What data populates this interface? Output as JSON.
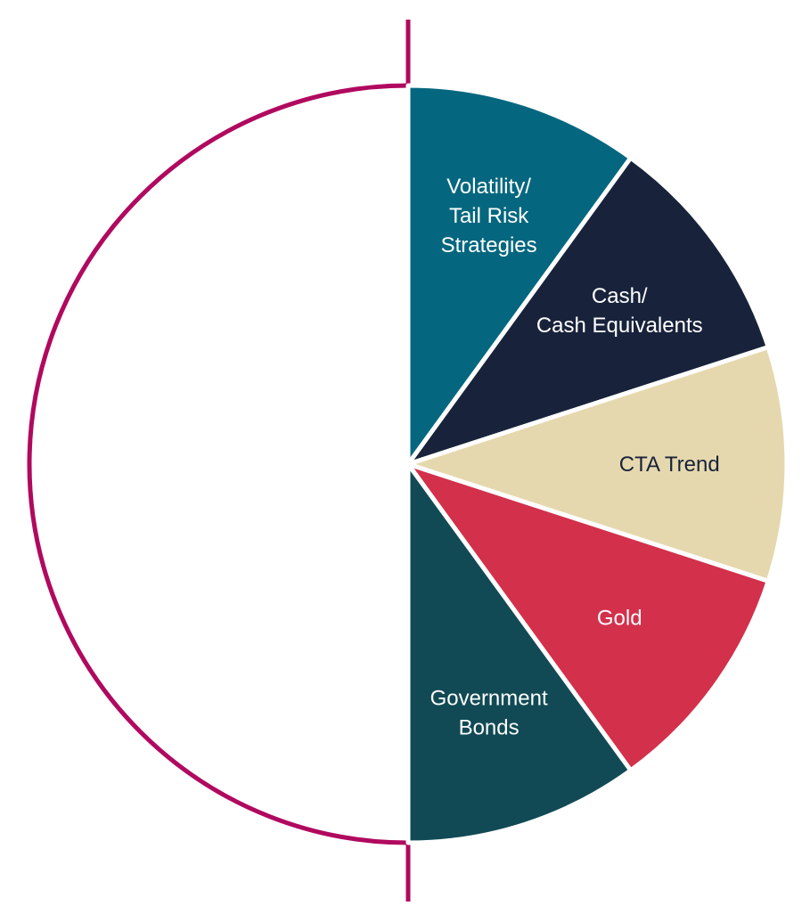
{
  "chart_data": {
    "type": "pie",
    "title": "",
    "categories": [
      "Volatility/ Tail Risk Strategies",
      "Cash/ Cash Equivalents",
      "CTA Trend",
      "Gold",
      "Government Bonds"
    ],
    "values": [
      20,
      20,
      20,
      20,
      20
    ],
    "slices": [
      {
        "lines": [
          "Volatility/",
          "Tail Risk",
          "Strategies"
        ],
        "value": 20,
        "color": "#05677f",
        "text_color": "#ffffff"
      },
      {
        "lines": [
          "Cash/",
          "Cash Equivalents"
        ],
        "value": 20,
        "color": "#18233b",
        "text_color": "#ffffff"
      },
      {
        "lines": [
          "CTA Trend"
        ],
        "value": 20,
        "color": "#e6d8ae",
        "text_color": "#18233b"
      },
      {
        "lines": [
          "Gold"
        ],
        "value": 20,
        "color": "#d3304b",
        "text_color": "#ffffff"
      },
      {
        "lines": [
          "Government",
          "Bonds"
        ],
        "value": 20,
        "color": "#114a55",
        "text_color": "#ffffff"
      }
    ],
    "empty_half_outline_color": "#b0095f",
    "legend": "none"
  }
}
